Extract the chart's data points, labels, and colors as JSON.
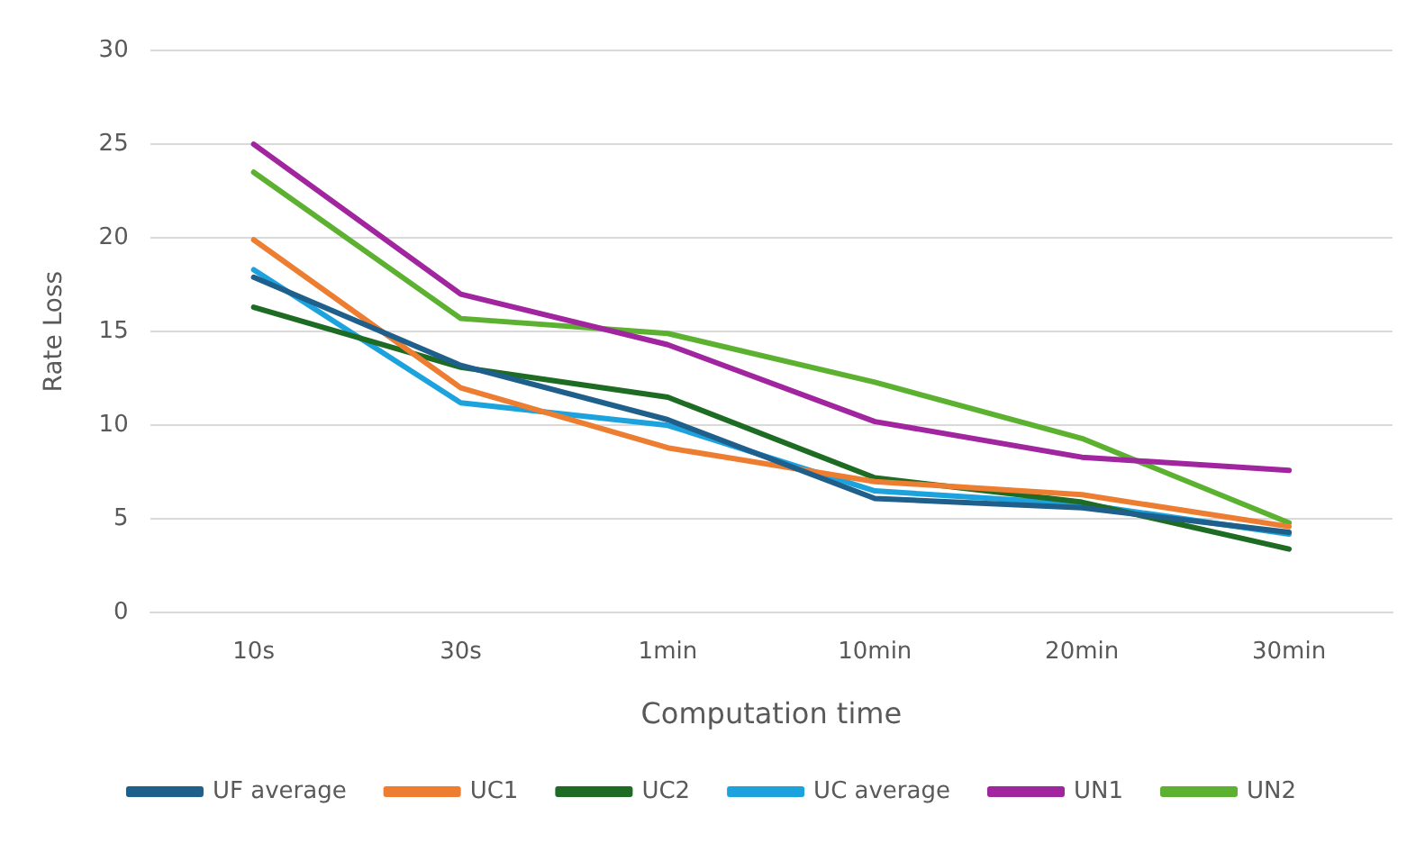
{
  "chart_data": {
    "type": "line",
    "xlabel": "Computation time",
    "ylabel": "Rate Loss",
    "categories": [
      "10s",
      "30s",
      "1min",
      "10min",
      "20min",
      "30min"
    ],
    "series": [
      {
        "name": "UF average",
        "color": "#1f5f8b",
        "values": [
          17.9,
          13.2,
          10.3,
          6.1,
          5.6,
          4.3
        ]
      },
      {
        "name": "UC1",
        "color": "#ed7d31",
        "values": [
          19.9,
          12.0,
          8.8,
          7.0,
          6.3,
          4.6
        ]
      },
      {
        "name": "UC2",
        "color": "#1e6b24",
        "values": [
          16.3,
          13.1,
          11.5,
          7.2,
          5.9,
          3.4
        ]
      },
      {
        "name": "UC average",
        "color": "#1ca3de",
        "values": [
          18.3,
          11.2,
          10.0,
          6.5,
          5.8,
          4.2
        ]
      },
      {
        "name": "UN1",
        "color": "#a0259e",
        "values": [
          25.0,
          17.0,
          14.3,
          10.2,
          8.3,
          7.6
        ]
      },
      {
        "name": "UN2",
        "color": "#5cb131",
        "values": [
          23.5,
          15.7,
          14.9,
          12.3,
          9.3,
          4.8
        ]
      }
    ],
    "ylim": [
      0,
      30
    ],
    "yticks": [
      0,
      5,
      10,
      15,
      20,
      25,
      30
    ],
    "grid": "y",
    "legend": "bottom",
    "marker": "none",
    "line_style": "solid"
  }
}
